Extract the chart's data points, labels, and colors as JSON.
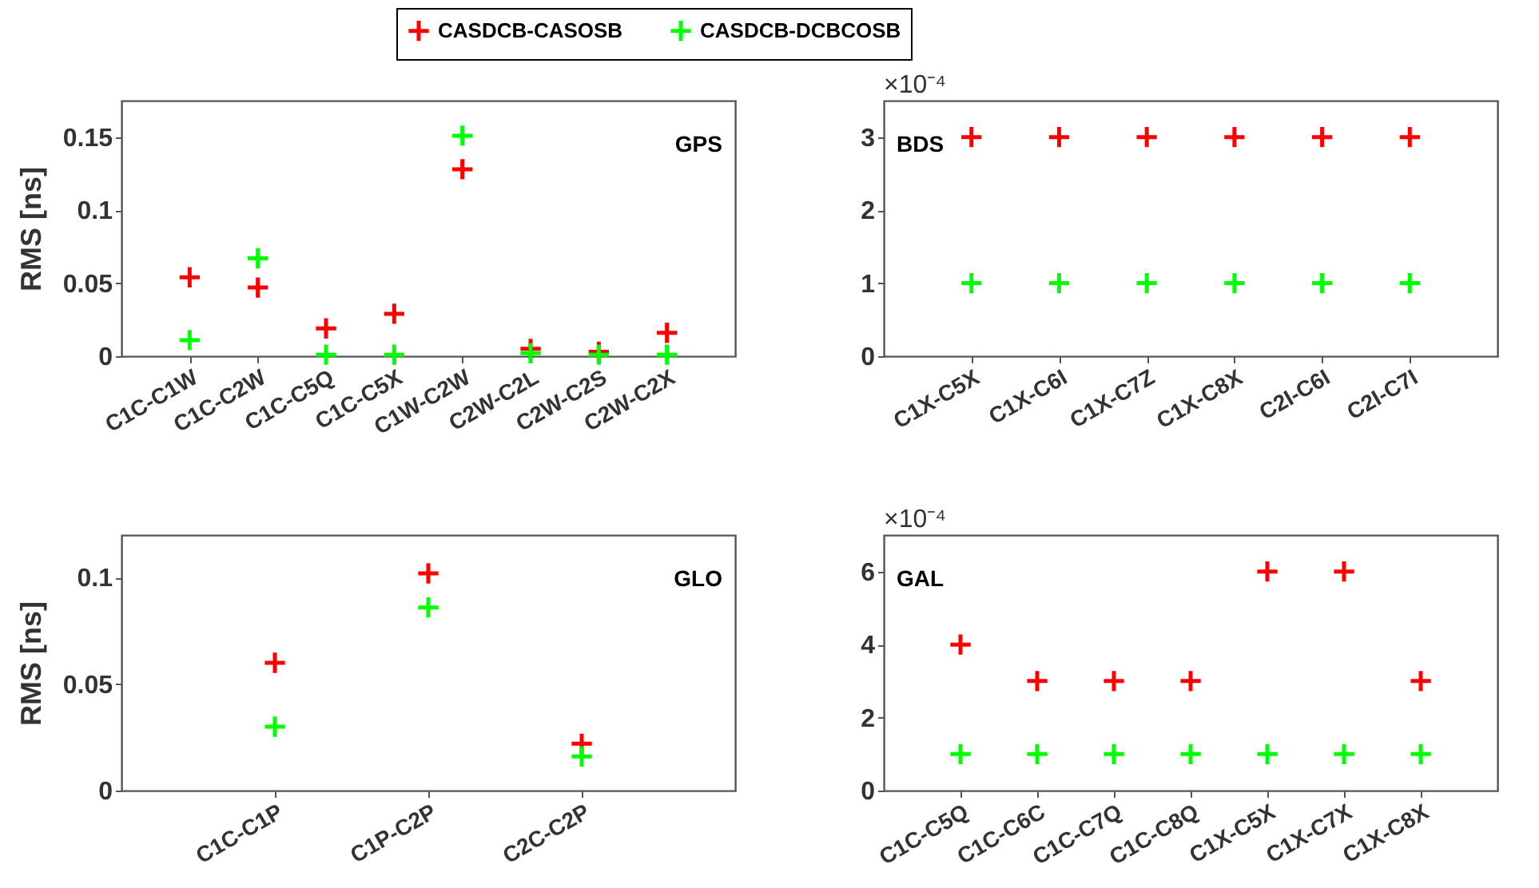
{
  "chart_data": [
    {
      "type": "scatter",
      "title": "GPS",
      "ylabel": "RMS [ns]",
      "categories": [
        "C1C-C1W",
        "C1C-C2W",
        "C1C-C5Q",
        "C1C-C5X",
        "C1W-C2W",
        "C2W-C2L",
        "C2W-C2S",
        "C2W-C2X"
      ],
      "series": [
        {
          "name": "CASDCB-CASOSB",
          "color": "#ff0000",
          "values": [
            0.054,
            0.047,
            0.019,
            0.029,
            0.128,
            0.005,
            0.003,
            0.016
          ]
        },
        {
          "name": "CASDCB-DCBCOSB",
          "color": "#00ff00",
          "values": [
            0.011,
            0.067,
            0.001,
            0.001,
            0.151,
            0.002,
            0.001,
            0.001
          ]
        }
      ],
      "ylim": [
        0,
        0.175
      ],
      "yticks": [
        0,
        0.05,
        0.1,
        0.15
      ],
      "marker": "cross",
      "legend": "top",
      "grid": false
    },
    {
      "type": "scatter",
      "title": "BDS",
      "annotations": [
        "×10⁻⁴"
      ],
      "categories": [
        "C1X-C5X",
        "C1X-C6I",
        "C1X-C7Z",
        "C1X-C8X",
        "C2I-C6I",
        "C2I-C7I"
      ],
      "series": [
        {
          "name": "CASDCB-CASOSB",
          "color": "#ff0000",
          "values": [
            3,
            3,
            3,
            3,
            3,
            3
          ]
        },
        {
          "name": "CASDCB-DCBCOSB",
          "color": "#00ff00",
          "values": [
            1,
            1,
            1,
            1,
            1,
            1
          ]
        }
      ],
      "ylim": [
        0,
        3.5
      ],
      "yticks": [
        0,
        1,
        2,
        3
      ],
      "marker": "cross",
      "grid": false
    },
    {
      "type": "scatter",
      "title": "GLO",
      "ylabel": "RMS [ns]",
      "categories": [
        "C1C-C1P",
        "C1P-C2P",
        "C2C-C2P"
      ],
      "series": [
        {
          "name": "CASDCB-CASOSB",
          "color": "#ff0000",
          "values": [
            0.06,
            0.102,
            0.022
          ]
        },
        {
          "name": "CASDCB-DCBCOSB",
          "color": "#00ff00",
          "values": [
            0.03,
            0.086,
            0.016
          ]
        }
      ],
      "ylim": [
        0,
        0.12
      ],
      "yticks": [
        0,
        0.05,
        0.1
      ],
      "marker": "cross",
      "grid": false
    },
    {
      "type": "scatter",
      "title": "GAL",
      "annotations": [
        "×10⁻⁴"
      ],
      "categories": [
        "C1C-C5Q",
        "C1C-C6C",
        "C1C-C7Q",
        "C1C-C8Q",
        "C1X-C5X",
        "C1X-C7X",
        "C1X-C8X"
      ],
      "series": [
        {
          "name": "CASDCB-CASOSB",
          "color": "#ff0000",
          "values": [
            4,
            3,
            3,
            3,
            6,
            6,
            3
          ]
        },
        {
          "name": "CASDCB-DCBCOSB",
          "color": "#00ff00",
          "values": [
            1,
            1,
            1,
            1,
            1,
            1,
            1
          ]
        }
      ],
      "ylim": [
        0,
        7
      ],
      "yticks": [
        0,
        2,
        4,
        6
      ],
      "marker": "cross",
      "grid": false
    }
  ]
}
